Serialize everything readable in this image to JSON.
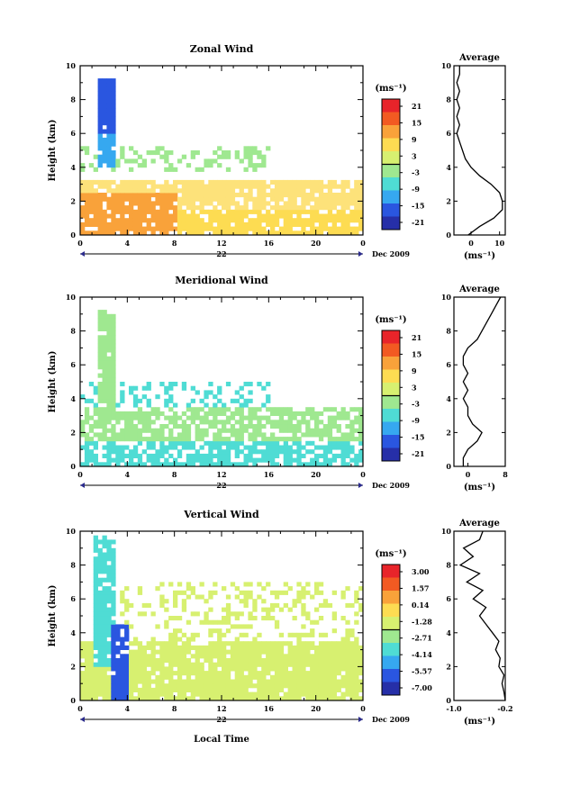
{
  "figure": {
    "x_axis_label": "Local Time",
    "date_label": "Dec 2009",
    "day_label": "22",
    "y_axis_label": "Height (km)",
    "unit_label": "(ms⁻¹)",
    "average_title": "Average"
  },
  "chart_data": [
    {
      "type": "heatmap",
      "title": "Zonal Wind",
      "xlabel": "Local Time",
      "ylabel": "Height (km)",
      "xlim": [
        0,
        24
      ],
      "ylim": [
        0,
        10
      ],
      "x_ticks": [
        "0",
        "4",
        "8",
        "12",
        "16",
        "20",
        "0"
      ],
      "y_ticks": [
        "0",
        "2",
        "4",
        "6",
        "8",
        "10"
      ],
      "date": "Dec 2009",
      "day": "22",
      "colorbar": {
        "unit": "(ms⁻¹)",
        "ticks": [
          "21",
          "15",
          "9",
          "3",
          "-3",
          "-9",
          "-15",
          "-21"
        ]
      },
      "profile": {
        "title": "Average",
        "x_ticks": [
          "0",
          "10"
        ],
        "xlim": [
          -6,
          12
        ],
        "xlabel": "(ms⁻¹)",
        "y_ticks": [
          "0",
          "2",
          "4",
          "6",
          "8",
          "10"
        ],
        "z": [
          0,
          0.5,
          1,
          1.5,
          2,
          2.5,
          3,
          3.5,
          4,
          4.5,
          5,
          5.5,
          6,
          6.5,
          7,
          7.5,
          8,
          8.5,
          9,
          9.5,
          10
        ],
        "values": [
          -1,
          3,
          8,
          11,
          11,
          10,
          7,
          3,
          0,
          -2,
          -3,
          -4,
          -5,
          -4,
          -5,
          -4,
          -5,
          -4,
          -5,
          -4,
          -4
        ]
      }
    },
    {
      "type": "heatmap",
      "title": "Meridional Wind",
      "xlabel": "Local Time",
      "ylabel": "Height (km)",
      "xlim": [
        0,
        24
      ],
      "ylim": [
        0,
        10
      ],
      "x_ticks": [
        "0",
        "4",
        "8",
        "12",
        "16",
        "20",
        "0"
      ],
      "y_ticks": [
        "0",
        "2",
        "4",
        "6",
        "8",
        "10"
      ],
      "date": "Dec 2009",
      "day": "22",
      "colorbar": {
        "unit": "(ms⁻¹)",
        "ticks": [
          "21",
          "15",
          "9",
          "3",
          "-3",
          "-9",
          "-15",
          "-21"
        ]
      },
      "profile": {
        "title": "Average",
        "x_ticks": [
          "0",
          "8"
        ],
        "xlim": [
          -3,
          8
        ],
        "xlabel": "(ms⁻¹)",
        "y_ticks": [
          "0",
          "2",
          "4",
          "6",
          "8",
          "10"
        ],
        "z": [
          0,
          0.5,
          1,
          1.5,
          2,
          2.5,
          3,
          3.5,
          4,
          4.5,
          5,
          5.5,
          6,
          6.5,
          7,
          7.5,
          8,
          8.5,
          9,
          9.5,
          10
        ],
        "values": [
          -1,
          -1,
          0,
          2,
          3,
          1,
          0,
          0,
          -1,
          0,
          -1,
          0,
          -1,
          -1,
          0,
          2,
          3,
          4,
          5,
          6,
          7
        ]
      }
    },
    {
      "type": "heatmap",
      "title": "Vertical Wind",
      "xlabel": "Local Time",
      "ylabel": "Height (km)",
      "xlim": [
        0,
        24
      ],
      "ylim": [
        0,
        10
      ],
      "x_ticks": [
        "0",
        "4",
        "8",
        "12",
        "16",
        "20",
        "0"
      ],
      "y_ticks": [
        "0",
        "2",
        "4",
        "6",
        "8",
        "10"
      ],
      "date": "Dec 2009",
      "day": "22",
      "colorbar": {
        "unit": "(ms⁻¹)",
        "ticks": [
          "3.00",
          "1.57",
          "0.14",
          "-1.28",
          "-2.71",
          "-4.14",
          "-5.57",
          "-7.00"
        ]
      },
      "profile": {
        "title": "Average",
        "x_ticks": [
          "-1.0",
          "-0.2"
        ],
        "xlim": [
          -1.0,
          -0.2
        ],
        "xlabel": "(ms⁻¹)",
        "y_ticks": [
          "0",
          "2",
          "4",
          "6",
          "8",
          "10"
        ],
        "z": [
          0,
          0.5,
          1,
          1.5,
          2,
          2.5,
          3,
          3.5,
          4,
          4.5,
          5,
          5.5,
          6,
          6.5,
          7,
          7.5,
          8,
          8.5,
          9,
          9.5,
          10
        ],
        "values": [
          -0.2,
          -0.22,
          -0.25,
          -0.22,
          -0.3,
          -0.28,
          -0.35,
          -0.3,
          -0.4,
          -0.5,
          -0.6,
          -0.5,
          -0.7,
          -0.55,
          -0.8,
          -0.6,
          -0.9,
          -0.7,
          -0.85,
          -0.6,
          -0.55
        ]
      }
    }
  ]
}
